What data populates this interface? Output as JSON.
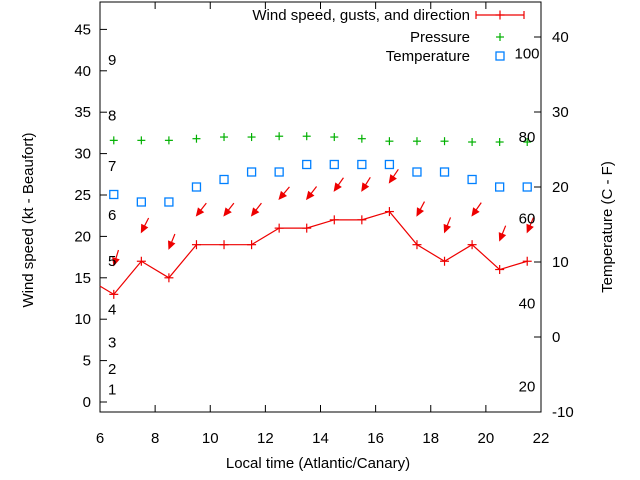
{
  "chart_data": {
    "type": "line",
    "title": "",
    "xlabel": "Local time (Atlantic/Canary)",
    "x_range": [
      6,
      22
    ],
    "x_ticks": [
      "6",
      "8",
      "10",
      "12",
      "14",
      "16",
      "18",
      "20",
      "22"
    ],
    "x_tick_values": [
      6,
      8,
      10,
      12,
      14,
      16,
      18,
      20,
      22
    ],
    "left_axis": {
      "title": "Wind speed (kt - Beaufort)",
      "tick_values": [
        0,
        5,
        10,
        15,
        20,
        25,
        30,
        35,
        40,
        45
      ],
      "beaufort_inner_labels": [
        {
          "b": "1",
          "kt": 1.5
        },
        {
          "b": "2",
          "kt": 4.0
        },
        {
          "b": "3",
          "kt": 7.2
        },
        {
          "b": "4",
          "kt": 11.2
        },
        {
          "b": "5",
          "kt": 17.0
        },
        {
          "b": "6",
          "kt": 22.6
        },
        {
          "b": "7",
          "kt": 28.5
        },
        {
          "b": "8",
          "kt": 34.6
        },
        {
          "b": "9",
          "kt": 41.3
        }
      ]
    },
    "right_axis": {
      "title": "Temperature (C - F)",
      "tick_values_c": [
        -10,
        0,
        10,
        20,
        30,
        40
      ],
      "fahrenheit_inner_labels": [
        {
          "f": "100",
          "c": 37.8
        },
        {
          "f": "80",
          "c": 26.7
        },
        {
          "f": "60",
          "c": 15.8
        },
        {
          "f": "40",
          "c": 4.5
        },
        {
          "f": "20",
          "c": -6.6
        }
      ]
    },
    "x": [
      6.5,
      7.5,
      8.5,
      9.5,
      10.5,
      11.5,
      12.5,
      13.5,
      14.5,
      15.5,
      16.5,
      17.5,
      18.5,
      19.5,
      20.5,
      21.5
    ],
    "series": [
      {
        "name": "Wind speed, gusts, and direction",
        "axis": "left",
        "color": "#ee0000",
        "lead_point": {
          "x": 6.0,
          "wind_kt": 14
        },
        "wind_kt": [
          13,
          17,
          15,
          19,
          19,
          19,
          21,
          21,
          22,
          22,
          23,
          19,
          17,
          19,
          16,
          17
        ],
        "gust_kt": [
          16.5,
          20.5,
          18.5,
          22.5,
          22.5,
          22.5,
          24.5,
          24.5,
          25.5,
          25.5,
          26.5,
          22.5,
          20.5,
          22.5,
          19.5,
          20.5
        ],
        "direction_deg_pointing": [
          197,
          207,
          202,
          218,
          218,
          218,
          220,
          218,
          215,
          212,
          214,
          208,
          202,
          215,
          202,
          203
        ]
      },
      {
        "name": "Pressure",
        "axis": "left-unlabeled-scale",
        "color": "#00b000",
        "values_kt_scale": [
          31.6,
          31.6,
          31.6,
          31.8,
          32.0,
          32.0,
          32.1,
          32.1,
          32.0,
          31.8,
          31.5,
          31.5,
          31.5,
          31.4,
          31.4,
          31.4
        ]
      },
      {
        "name": "Temperature",
        "axis": "right",
        "color": "#0080ff",
        "values_c": [
          19,
          18,
          18,
          20,
          21,
          22,
          22,
          23,
          23,
          23,
          23,
          22,
          22,
          21,
          20,
          20
        ]
      }
    ],
    "legend": [
      {
        "label": "Wind speed, gusts, and direction",
        "marker": "xerror-line",
        "color": "#ee0000"
      },
      {
        "label": "Pressure",
        "marker": "plus",
        "color": "#00b000"
      },
      {
        "label": "Temperature",
        "marker": "square",
        "color": "#0080ff"
      }
    ],
    "legend_position": "top-right-inside",
    "grid": false,
    "colors": {
      "wind": "#ee0000",
      "pressure": "#00b000",
      "temperature": "#0080ff",
      "axis": "#000000"
    }
  }
}
